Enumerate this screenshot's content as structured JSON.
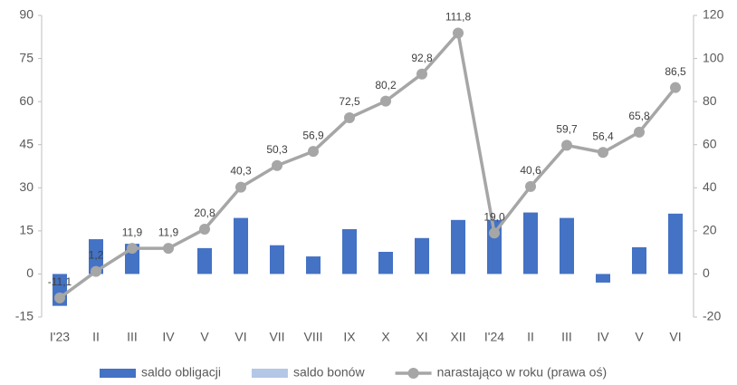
{
  "chart_data": {
    "type": "bar",
    "categories": [
      "I'23",
      "II",
      "III",
      "IV",
      "V",
      "VI",
      "VII",
      "VIII",
      "IX",
      "X",
      "XI",
      "XII",
      "I'24",
      "II",
      "III",
      "IV",
      "V",
      "VI"
    ],
    "series": [
      {
        "name": "saldo obligacji",
        "type": "bar",
        "color": "#4472c4",
        "values": [
          -11.1,
          12.1,
          10.5,
          0,
          9,
          19.5,
          10,
          6.1,
          15.6,
          7.7,
          12.5,
          18.8,
          18.8,
          21.4,
          19.5,
          -3,
          9.3,
          21
        ]
      },
      {
        "name": "saldo bonów",
        "type": "bar",
        "color": "#b4c7e7",
        "values": [
          null,
          null,
          null,
          null,
          null,
          null,
          null,
          null,
          null,
          null,
          null,
          null,
          null,
          null,
          null,
          null,
          null,
          null
        ]
      },
      {
        "name": "narastająco w roku (prawa oś)",
        "type": "line",
        "axis": "y2",
        "color": "#a6a6a6",
        "values": [
          -11.1,
          1.2,
          11.9,
          11.9,
          20.8,
          40.3,
          50.3,
          56.9,
          72.5,
          80.2,
          92.8,
          111.8,
          19.0,
          40.6,
          59.7,
          56.4,
          65.8,
          86.5
        ],
        "value_labels": [
          "-11,1",
          "1,2",
          "11,9",
          "11,9",
          "20,8",
          "40,3",
          "50,3",
          "56,9",
          "72,5",
          "80,2",
          "92,8",
          "111,8",
          "19,0",
          "40,6",
          "59,7",
          "56,4",
          "65,8",
          "86,5"
        ]
      }
    ],
    "ylim": [
      -15,
      90
    ],
    "yticks": [
      -15,
      0,
      15,
      30,
      45,
      60,
      75,
      90
    ],
    "y2lim": [
      -20,
      120
    ],
    "y2ticks": [
      -20,
      0,
      20,
      40,
      60,
      80,
      100,
      120
    ],
    "grid": false
  }
}
